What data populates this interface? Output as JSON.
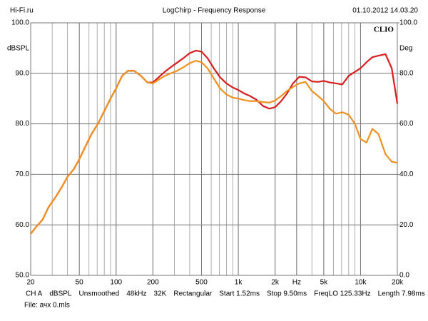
{
  "chart_data": {
    "type": "line",
    "title": "LogChirp - Frequency Response",
    "site": "Hi-Fi.ru",
    "timestamp": "01.10.2012 14.03.20",
    "brand": "CLIO",
    "y_label": "dBSPL",
    "y2_label": "Deg",
    "xscale": "log",
    "grid": true,
    "x": [
      20,
      22,
      25,
      28,
      32,
      36,
      40,
      45,
      50,
      56,
      63,
      71,
      80,
      90,
      100,
      112,
      125,
      140,
      160,
      180,
      200,
      225,
      250,
      280,
      315,
      355,
      400,
      450,
      500,
      560,
      630,
      710,
      800,
      900,
      1000,
      1120,
      1250,
      1400,
      1600,
      1800,
      2000,
      2240,
      2500,
      2800,
      3150,
      3550,
      4000,
      4500,
      5000,
      5600,
      6300,
      7100,
      8000,
      9000,
      10000,
      11200,
      12500,
      14000,
      16000,
      18000,
      20000
    ],
    "series": [
      {
        "color": "#d81e1e",
        "values": [
          58.2,
          59.5,
          61,
          63.5,
          65.5,
          67.5,
          69.5,
          71,
          73,
          75.5,
          78,
          80,
          82.5,
          85,
          87,
          89.5,
          90.5,
          90.5,
          89.5,
          88.2,
          88.2,
          89.3,
          90.3,
          91.2,
          92.1,
          93,
          94,
          94.5,
          94.3,
          93,
          91,
          89.2,
          88,
          87.2,
          86.7,
          86,
          85.5,
          84.8,
          83.5,
          83,
          83.3,
          84.5,
          86,
          88,
          89.3,
          89.2,
          88.4,
          88.3,
          88.5,
          88.2,
          88,
          87.8,
          89.5,
          90.3,
          91,
          92.2,
          93.2,
          93.5,
          93.8,
          91,
          84
        ]
      },
      {
        "color": "#f0901e",
        "values": [
          58.2,
          59.5,
          61,
          63.5,
          65.5,
          67.5,
          69.5,
          71,
          73,
          75.5,
          78,
          80,
          82.5,
          85,
          87,
          89.5,
          90.5,
          90.5,
          89.5,
          88.2,
          88,
          88.8,
          89.5,
          90,
          90.5,
          91.2,
          92,
          92.5,
          92.2,
          91,
          89,
          87,
          85.8,
          85.2,
          85,
          84.7,
          84.5,
          84.5,
          84.3,
          84.2,
          84.6,
          85.5,
          86.5,
          87.3,
          88,
          88.3,
          86.5,
          85.5,
          84.5,
          83,
          82,
          82.3,
          81.8,
          80,
          77,
          76.3,
          79,
          78,
          74,
          72.5,
          72.3
        ]
      }
    ],
    "xlim": [
      20,
      20000
    ],
    "xticks": [
      20,
      50,
      100,
      200,
      500,
      {
        "value": 1000,
        "label": "1k"
      },
      {
        "value": 2000,
        "label": "2k"
      },
      {
        "value": 3000,
        "label": "Hz"
      },
      {
        "value": 5000,
        "label": "5k"
      },
      {
        "value": 10000,
        "label": "10k"
      },
      {
        "value": 20000,
        "label": "20k"
      }
    ],
    "ylim": [
      50,
      100
    ],
    "yticks": [
      {
        "value": 50,
        "label": "50.0"
      },
      {
        "value": 60,
        "label": "60.0"
      },
      {
        "value": 70,
        "label": "70.0"
      },
      {
        "value": 80,
        "label": "80.0"
      },
      {
        "value": 90,
        "label": "90.0"
      },
      {
        "value": 100,
        "label": "100.0"
      }
    ],
    "y2lim": [
      0,
      100
    ],
    "y2ticks": [
      {
        "value": 0,
        "label": "0.0"
      },
      {
        "value": 20,
        "label": "20.0"
      },
      {
        "value": 40,
        "label": "40.0"
      },
      {
        "value": 60,
        "label": "60.0"
      },
      {
        "value": 80,
        "label": "80.0"
      },
      {
        "value": 100,
        "label": "100.0"
      }
    ],
    "info": [
      "CH A",
      "dBSPL",
      "Unsmoothed",
      "48kHz",
      "32K",
      "Rectangular",
      "Start 1.52ms",
      "Stop 9.50ms",
      "FreqLO 125.33Hz",
      "Length 7.98ms"
    ],
    "file": "File: ачх 0.mls"
  }
}
